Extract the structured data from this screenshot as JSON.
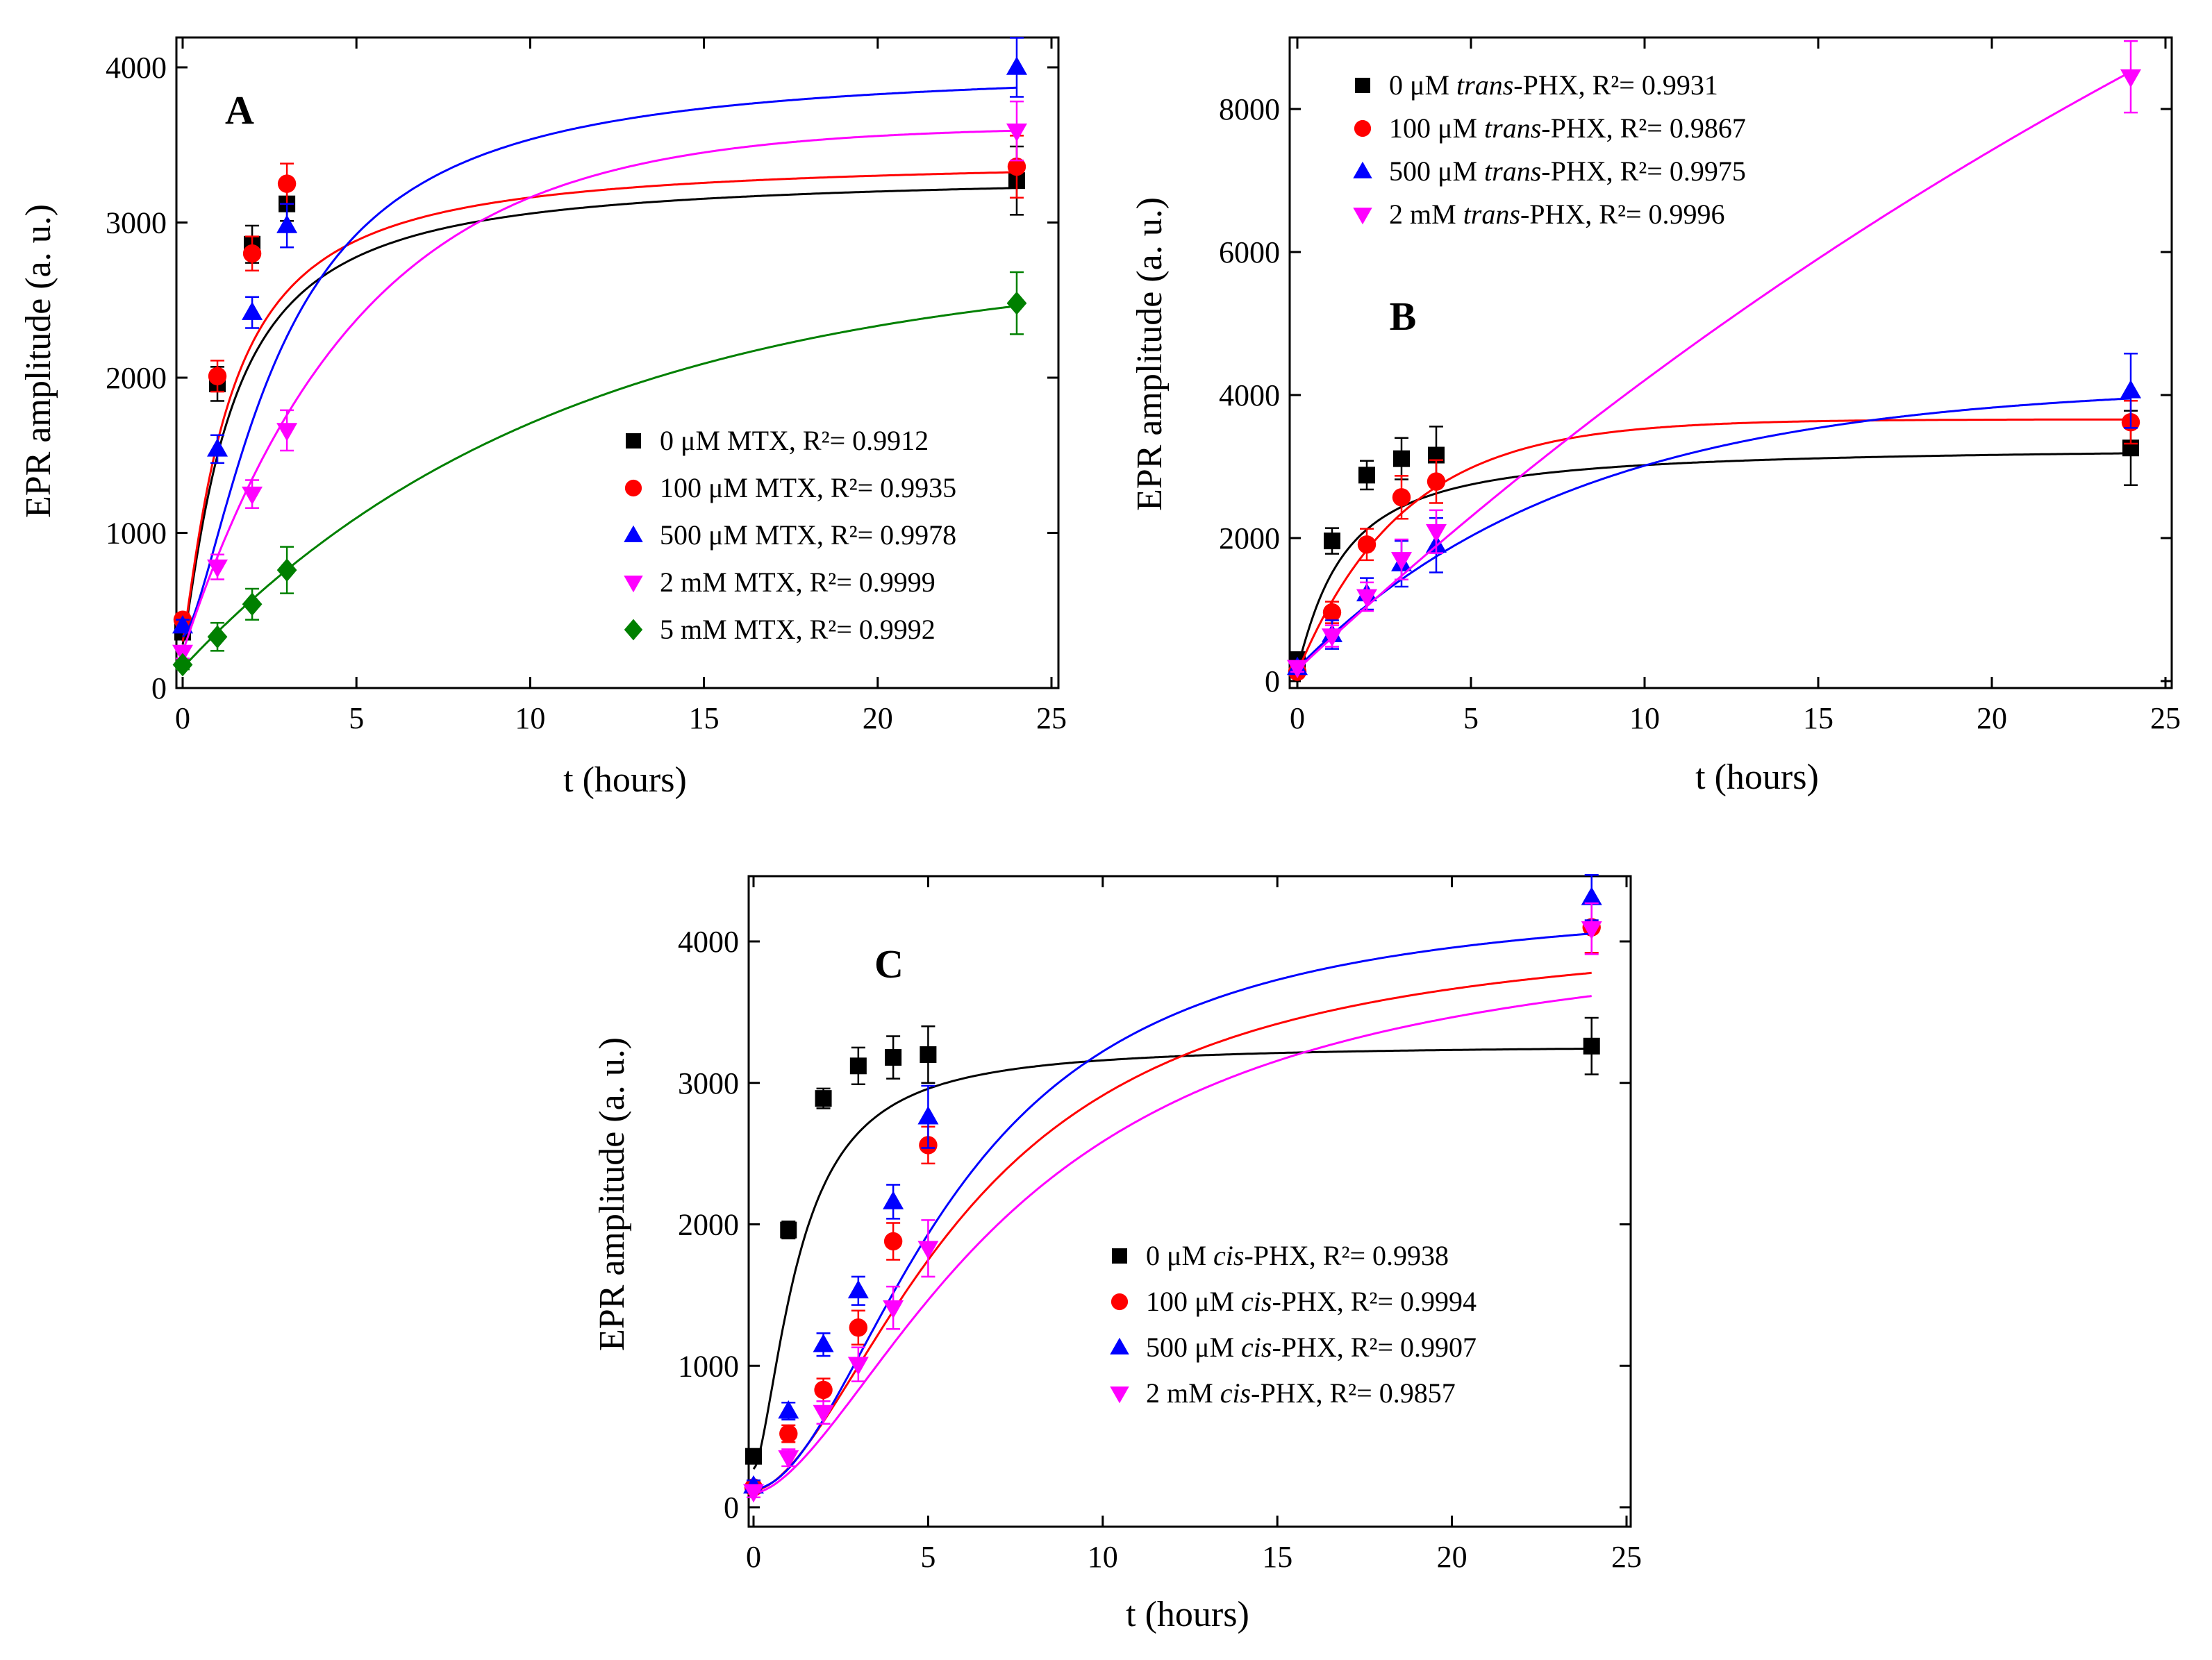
{
  "figure": {
    "description_free": true
  },
  "colors": {
    "black": "#000000",
    "red": "#ff0000",
    "blue": "#0000ff",
    "magenta": "#ff00ff",
    "green": "#008000"
  },
  "chart_data": [
    {
      "type": "scatter",
      "panel_label": "A",
      "title": "",
      "xlabel": "t (hours)",
      "ylabel": "EPR amplitude (a. u.)",
      "xlim": [
        -0.5,
        25
      ],
      "ylim": [
        0,
        4200
      ],
      "xticks": [
        0,
        5,
        10,
        15,
        20,
        25
      ],
      "yticks": [
        0,
        1000,
        2000,
        3000,
        4000
      ],
      "legend_placement": "center-right",
      "series": [
        {
          "name": "0 μM MTX",
          "r2": "R²= 0.9912",
          "legend_prefix": "0 μM MTX, ",
          "marker": "square",
          "color": "#000000",
          "x": [
            0,
            1,
            2,
            3,
            24
          ],
          "y": [
            360,
            1960,
            2860,
            3120,
            3270
          ],
          "err": [
            40,
            110,
            120,
            110,
            220
          ],
          "fit": {
            "model": "sigmoid",
            "A0": 280,
            "A": 3320,
            "k": 1.4,
            "n": 1.2
          }
        },
        {
          "name": "100 μM MTX",
          "r2": "R²= 0.9935",
          "legend_prefix": "100 μM MTX, ",
          "marker": "circle",
          "color": "#ff0000",
          "x": [
            0,
            1,
            2,
            3,
            24
          ],
          "y": [
            440,
            2010,
            2800,
            3250,
            3360
          ],
          "err": [
            40,
            100,
            110,
            130,
            200
          ],
          "fit": {
            "model": "sigmoid",
            "A0": 300,
            "A": 3420,
            "k": 1.35,
            "n": 1.2
          }
        },
        {
          "name": "500 μM MTX",
          "r2": "R²= 0.9978",
          "legend_prefix": "500 μM MTX, ",
          "marker": "triangle-up",
          "color": "#0000ff",
          "x": [
            0,
            1,
            2,
            3,
            24
          ],
          "y": [
            400,
            1540,
            2420,
            2980,
            4000
          ],
          "err": [
            40,
            90,
            100,
            140,
            190
          ],
          "fit": {
            "model": "sigmoid",
            "A0": 330,
            "A": 4010,
            "k": 2.8,
            "n": 1.5
          }
        },
        {
          "name": "2 mM MTX",
          "r2": "R²= 0.9999",
          "legend_prefix": "2 mM MTX, ",
          "marker": "triangle-down",
          "color": "#ff00ff",
          "x": [
            0,
            1,
            2,
            3,
            24
          ],
          "y": [
            230,
            780,
            1250,
            1660,
            3590
          ],
          "err": [
            40,
            80,
            90,
            130,
            190
          ],
          "fit": {
            "model": "exp",
            "A0": 230,
            "A": 3620,
            "k": 0.2
          }
        },
        {
          "name": "5 mM MTX",
          "r2": "R²= 0.9992",
          "legend_prefix": "5 mM MTX, ",
          "marker": "diamond",
          "color": "#008000",
          "x": [
            0,
            1,
            2,
            3,
            24
          ],
          "y": [
            150,
            330,
            540,
            760,
            2480
          ],
          "err": [
            30,
            90,
            100,
            150,
            200
          ],
          "fit": {
            "model": "exp",
            "A0": 130,
            "A": 2750,
            "k": 0.092
          }
        }
      ]
    },
    {
      "type": "scatter",
      "panel_label": "B",
      "title": "",
      "xlabel": "t (hours)",
      "ylabel": "EPR amplitude (a. u.)",
      "xlim": [
        -0.5,
        25
      ],
      "ylim": [
        0,
        9000
      ],
      "xticks": [
        0,
        5,
        10,
        15,
        20,
        25
      ],
      "yticks": [
        0,
        2000,
        4000,
        6000,
        8000
      ],
      "legend_placement": "top-left",
      "series": [
        {
          "name": "0 μM trans-PHX",
          "r2": "R²= 0.9931",
          "legend_pre": "0 μM ",
          "legend_italic": "trans",
          "legend_post": "-PHX, ",
          "marker": "square",
          "color": "#000000",
          "x": [
            0,
            1,
            2,
            3,
            4,
            24
          ],
          "y": [
            300,
            1960,
            2880,
            3110,
            3160,
            3260
          ],
          "err": [
            60,
            180,
            200,
            290,
            400,
            520
          ],
          "fit": {
            "model": "sigmoid",
            "A0": 200,
            "A": 3290,
            "k": 1.3,
            "n": 1.15
          }
        },
        {
          "name": "100 μM trans-PHX",
          "r2": "R²= 0.9867",
          "legend_pre": "100 μM ",
          "legend_italic": "trans",
          "legend_post": "-PHX, ",
          "marker": "circle",
          "color": "#ff0000",
          "x": [
            0,
            1,
            2,
            3,
            4,
            24
          ],
          "y": [
            130,
            960,
            1910,
            2570,
            2790,
            3620
          ],
          "err": [
            60,
            150,
            220,
            300,
            300,
            300
          ],
          "fit": {
            "model": "exp",
            "A0": 120,
            "A": 3660,
            "k": 0.33
          }
        },
        {
          "name": "500 μM trans-PHX",
          "r2": "R²= 0.9975",
          "legend_pre": "500 μM ",
          "legend_italic": "trans",
          "legend_post": "-PHX, ",
          "marker": "triangle-up",
          "color": "#0000ff",
          "x": [
            0,
            1,
            2,
            3,
            4,
            24
          ],
          "y": [
            190,
            650,
            1220,
            1640,
            1900,
            4060
          ],
          "err": [
            60,
            200,
            220,
            320,
            380,
            520
          ],
          "fit": {
            "model": "exp",
            "A0": 180,
            "A": 4150,
            "k": 0.125
          }
        },
        {
          "name": "2 mM trans-PHX",
          "r2": "R²= 0.9996",
          "legend_pre": "2 mM ",
          "legend_italic": "trans",
          "legend_post": "-PHX, ",
          "marker": "triangle-down",
          "color": "#ff00ff",
          "x": [
            0,
            1,
            2,
            3,
            4,
            24
          ],
          "y": [
            190,
            630,
            1180,
            1700,
            2090,
            8450
          ],
          "err": [
            60,
            150,
            200,
            280,
            300,
            500
          ],
          "fit": {
            "model": "exp",
            "A0": 160,
            "A": 20000,
            "k": 0.0228
          }
        }
      ]
    },
    {
      "type": "scatter",
      "panel_label": "C",
      "title": "",
      "xlabel": "t (hours)",
      "ylabel": "EPR amplitude (a. u.)",
      "xlim": [
        -0.2,
        25
      ],
      "ylim": [
        0,
        4500
      ],
      "xticks": [
        0,
        5,
        10,
        15,
        20,
        25
      ],
      "yticks": [
        0,
        1000,
        2000,
        3000,
        4000
      ],
      "legend_placement": "center-right",
      "series": [
        {
          "name": "0 μM cis-PHX",
          "r2": "R²= 0.9938",
          "legend_pre": "0 μM ",
          "legend_italic": "cis",
          "legend_post": "-PHX, ",
          "marker": "square",
          "color": "#000000",
          "x": [
            0,
            1,
            2,
            3,
            4,
            5,
            24
          ],
          "y": [
            360,
            1960,
            2890,
            3120,
            3180,
            3200,
            3260
          ],
          "err": [
            40,
            60,
            70,
            130,
            150,
            200,
            200
          ],
          "fit": {
            "model": "sigmoid",
            "A0": 270,
            "A": 3270,
            "k": 1.3,
            "n": 1.6
          }
        },
        {
          "name": "100 μM cis-PHX",
          "r2": "R²= 0.9994",
          "legend_pre": "100 μM ",
          "legend_italic": "cis",
          "legend_post": "-PHX, ",
          "marker": "circle",
          "color": "#ff0000",
          "x": [
            0,
            1,
            2,
            3,
            4,
            5,
            24
          ],
          "y": [
            140,
            520,
            830,
            1270,
            1880,
            2560,
            4100
          ],
          "err": [
            40,
            60,
            80,
            120,
            130,
            130,
            180
          ],
          "fit": {
            "model": "sigmoid",
            "A0": 120,
            "A": 4120,
            "k": 6.2,
            "n": 1.75
          }
        },
        {
          "name": "500 μM cis-PHX",
          "r2": "R²= 0.9907",
          "legend_pre": "500 μM ",
          "legend_italic": "cis",
          "legend_post": "-PHX, ",
          "marker": "triangle-up",
          "color": "#0000ff",
          "x": [
            0,
            1,
            2,
            3,
            4,
            5,
            24
          ],
          "y": [
            150,
            680,
            1150,
            1530,
            2160,
            2760,
            4310
          ],
          "err": [
            40,
            60,
            80,
            100,
            120,
            220,
            160
          ],
          "fit": {
            "model": "sigmoid",
            "A0": 130,
            "A": 4320,
            "k": 5.8,
            "n": 1.9
          }
        },
        {
          "name": "2 mM cis-PHX",
          "r2": "R²= 0.9857",
          "legend_pre": "2 mM ",
          "legend_italic": "cis",
          "legend_post": "-PHX, ",
          "marker": "triangle-down",
          "color": "#ff00ff",
          "x": [
            0,
            1,
            2,
            3,
            4,
            5,
            24
          ],
          "y": [
            110,
            350,
            670,
            1010,
            1410,
            1830,
            4090
          ],
          "err": [
            40,
            60,
            80,
            120,
            150,
            200,
            180
          ],
          "fit": {
            "model": "sigmoid",
            "A0": 100,
            "A": 4130,
            "k": 7.5,
            "n": 1.65
          }
        }
      ]
    }
  ]
}
